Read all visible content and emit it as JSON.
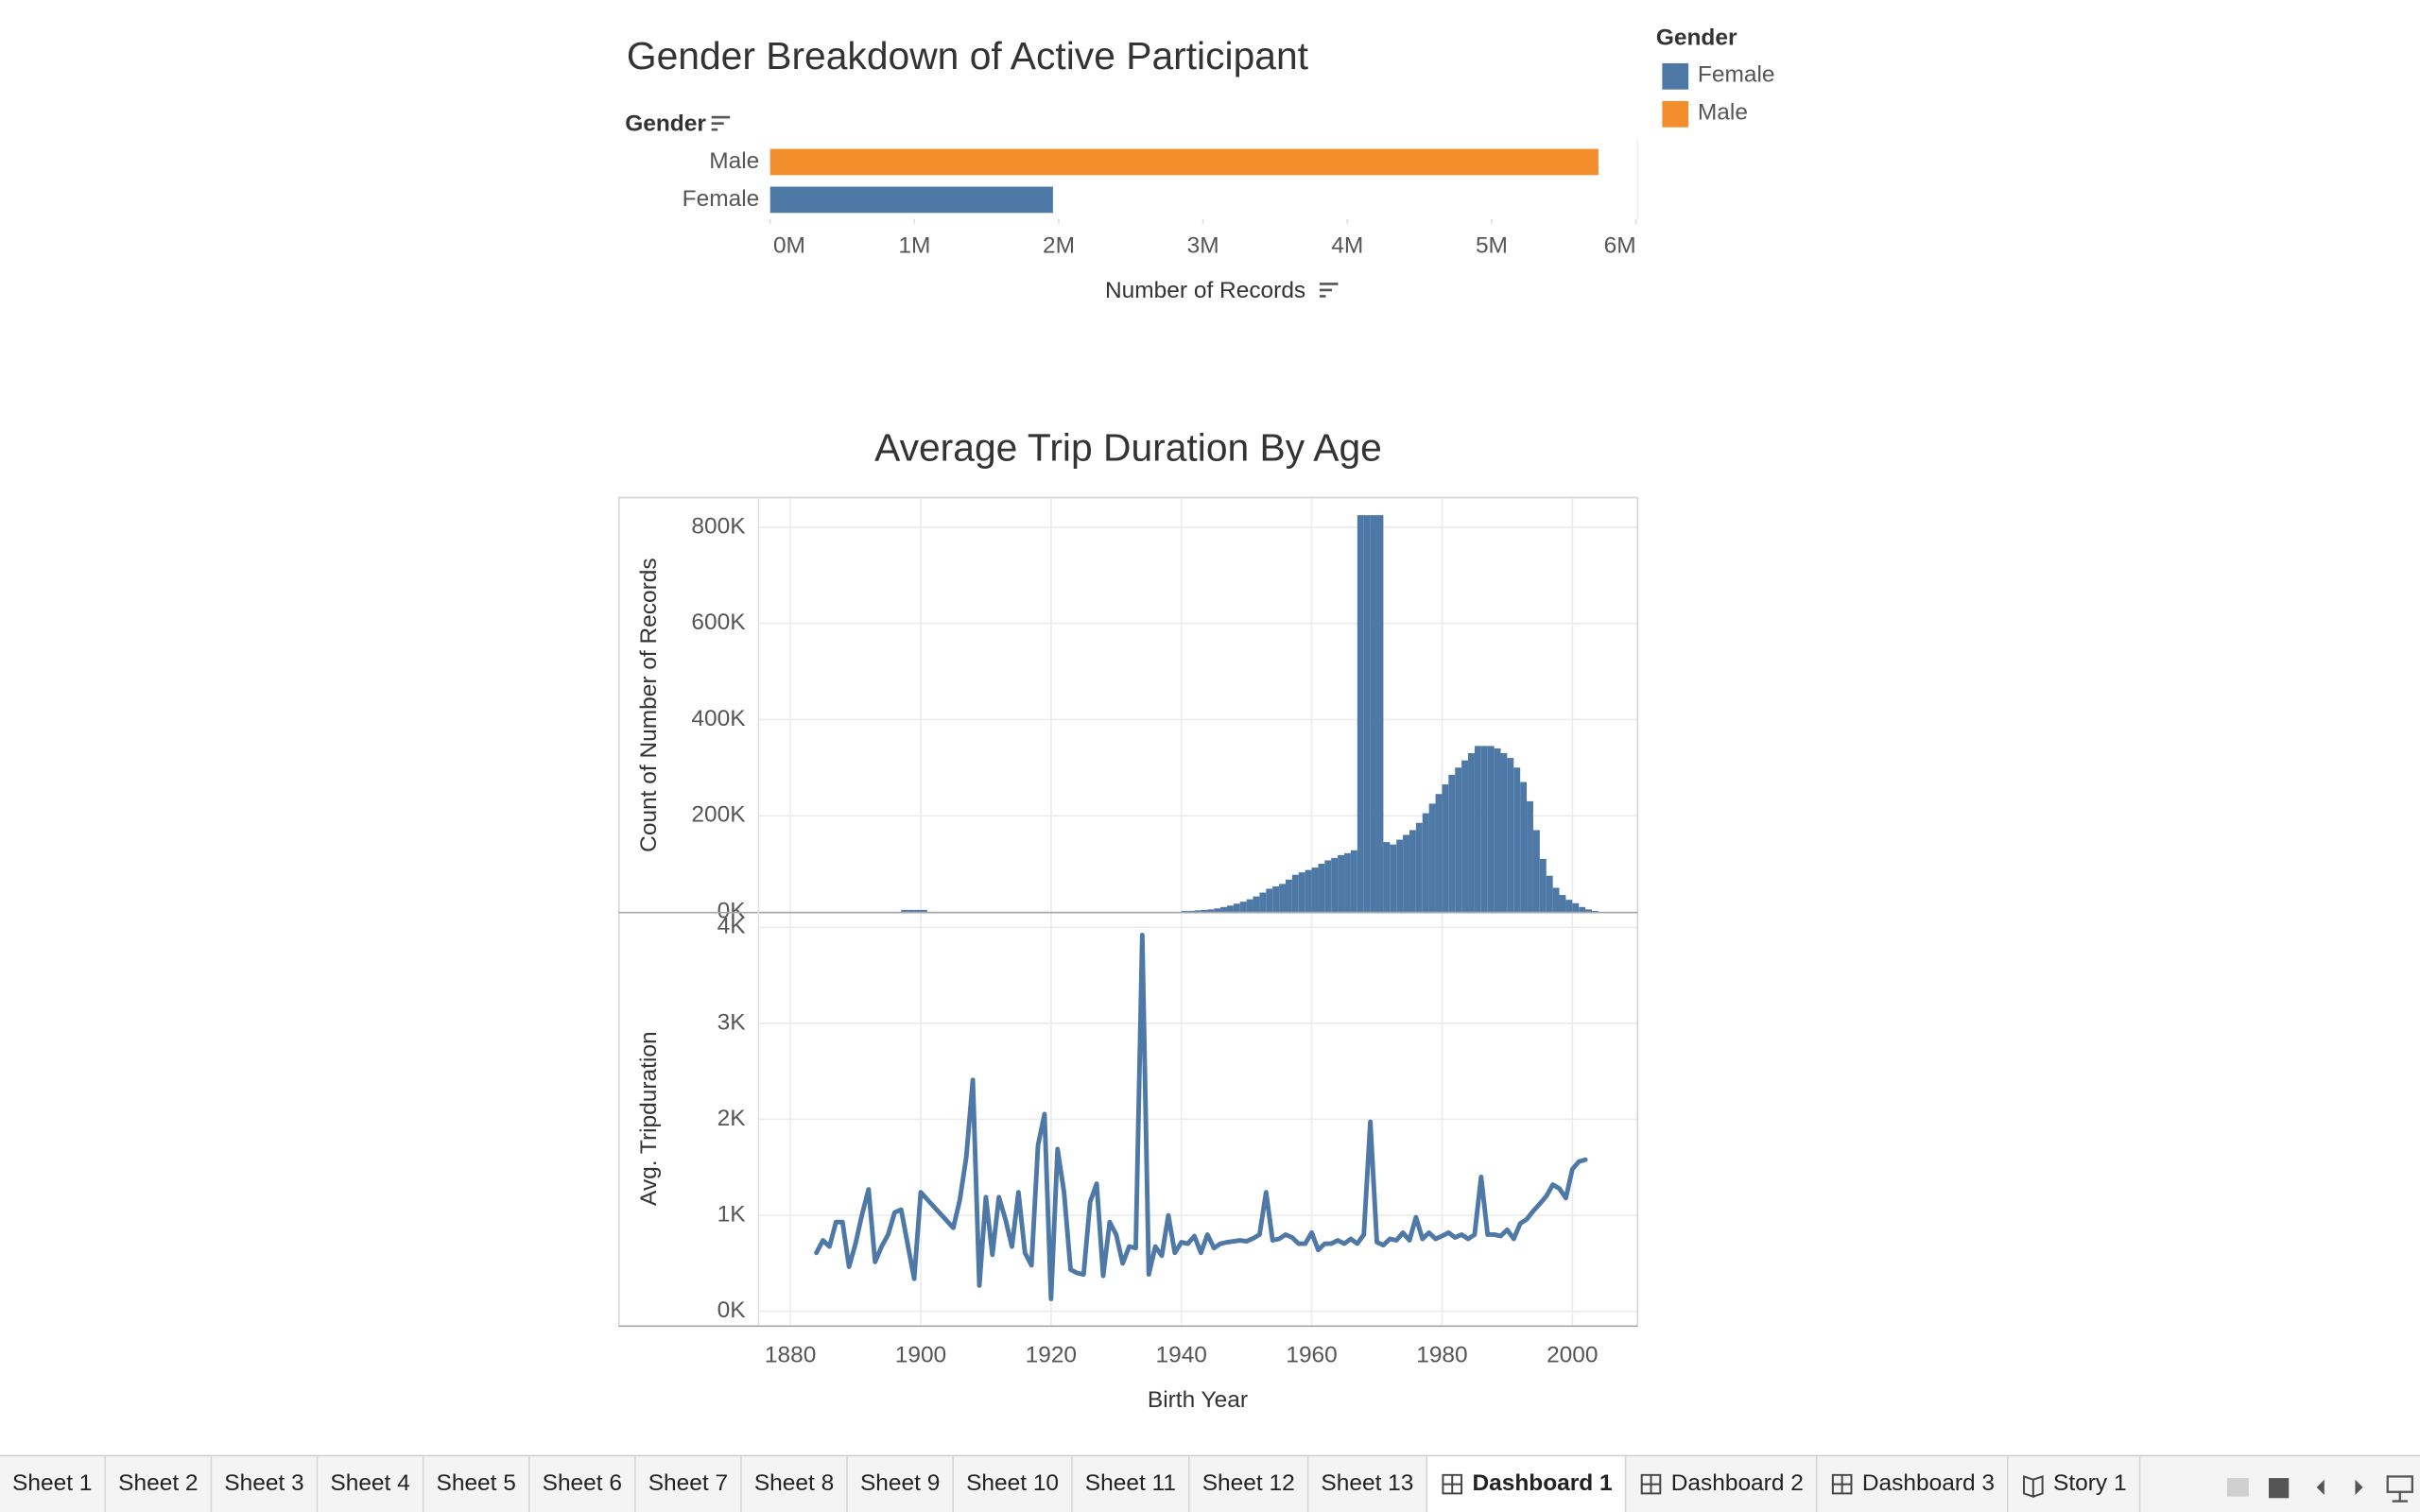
{
  "chart_data": [
    {
      "type": "bar",
      "orientation": "horizontal",
      "title": "Gender Breakdown of Active Participant",
      "y_label": "Gender",
      "x_label": "Number of Records",
      "categories": [
        "Male",
        "Female"
      ],
      "values": [
        5740000,
        1960000
      ],
      "colors": [
        "#f28e2b",
        "#4e79a7"
      ],
      "xlim": [
        0,
        6000000
      ],
      "xticks": [
        {
          "value": 0,
          "label": "0M"
        },
        {
          "value": 1000000,
          "label": "1M"
        },
        {
          "value": 2000000,
          "label": "2M"
        },
        {
          "value": 3000000,
          "label": "3M"
        },
        {
          "value": 4000000,
          "label": "4M"
        },
        {
          "value": 5000000,
          "label": "5M"
        },
        {
          "value": 6000000,
          "label": "6M"
        }
      ],
      "legend": {
        "title": "Gender",
        "corner": "top-right",
        "items": [
          {
            "name": "Female",
            "color": "#4e79a7"
          },
          {
            "name": "Male",
            "color": "#f28e2b"
          }
        ]
      }
    },
    {
      "type": "histogram",
      "title": "Average Trip Duration By Age",
      "y_label": "Count of Number of Records",
      "color": "#4e79a7",
      "bins": [
        1895,
        1896,
        1897,
        1898,
        1899,
        1900,
        1901,
        1902,
        1903,
        1904,
        1905,
        1906,
        1907,
        1908,
        1909,
        1910,
        1911,
        1912,
        1913,
        1914,
        1915,
        1916,
        1917,
        1918,
        1919,
        1920,
        1921,
        1922,
        1923,
        1924,
        1925,
        1926,
        1927,
        1928,
        1929,
        1930,
        1931,
        1932,
        1933,
        1934,
        1935,
        1936,
        1937,
        1938,
        1939,
        1940,
        1941,
        1942,
        1943,
        1944,
        1945,
        1946,
        1947,
        1948,
        1949,
        1950,
        1951,
        1952,
        1953,
        1954,
        1955,
        1956,
        1957,
        1958,
        1959,
        1960,
        1961,
        1962,
        1963,
        1964,
        1965,
        1966,
        1967,
        1968,
        1969,
        1970,
        1971,
        1972,
        1973,
        1974,
        1975,
        1976,
        1977,
        1978,
        1979,
        1980,
        1981,
        1982,
        1983,
        1984,
        1985,
        1986,
        1987,
        1988,
        1989,
        1990,
        1991,
        1992,
        1993,
        1994,
        1995,
        1996,
        1997,
        1998,
        1999,
        2000,
        2001,
        2002,
        2003,
        2004
      ],
      "values": [
        0,
        0,
        4000,
        4000,
        4000,
        4000,
        0,
        0,
        0,
        0,
        0,
        0,
        0,
        0,
        0,
        0,
        0,
        0,
        0,
        0,
        0,
        0,
        0,
        0,
        0,
        0,
        0,
        0,
        0,
        0,
        0,
        0,
        0,
        0,
        0,
        0,
        0,
        0,
        0,
        0,
        0,
        0,
        0,
        0,
        0,
        2000,
        2000,
        3000,
        4000,
        5000,
        7000,
        10000,
        13000,
        17000,
        21000,
        26000,
        32000,
        40000,
        48000,
        53000,
        58000,
        67000,
        77000,
        82000,
        87000,
        92000,
        100000,
        107000,
        112000,
        118000,
        122000,
        128000,
        825000,
        825000,
        825000,
        825000,
        145000,
        140000,
        150000,
        160000,
        170000,
        185000,
        205000,
        225000,
        245000,
        265000,
        285000,
        300000,
        315000,
        330000,
        345000,
        345000,
        345000,
        340000,
        330000,
        320000,
        300000,
        270000,
        230000,
        170000,
        110000,
        75000,
        50000,
        35000,
        25000,
        18000,
        10000,
        5000,
        2000
      ],
      "xlim": [
        1875,
        2010
      ],
      "xticks": [
        1880,
        1900,
        1920,
        1940,
        1960,
        1980,
        2000
      ],
      "ylim": [
        0,
        860000
      ],
      "yticks": [
        {
          "value": 0,
          "label": "0K"
        },
        {
          "value": 200000,
          "label": "200K"
        },
        {
          "value": 400000,
          "label": "400K"
        },
        {
          "value": 600000,
          "label": "600K"
        },
        {
          "value": 800000,
          "label": "800K"
        }
      ],
      "grid": true
    },
    {
      "type": "line",
      "x_label": "Birth Year",
      "y_label": "Avg. Tripduration",
      "color": "#4e79a7",
      "x": [
        1884,
        1885,
        1886,
        1887,
        1888,
        1889,
        1890,
        1891,
        1892,
        1893,
        1894,
        1895,
        1896,
        1897,
        1899,
        1900,
        1905,
        1906,
        1907,
        1908,
        1909,
        1910,
        1911,
        1912,
        1913,
        1914,
        1915,
        1916,
        1917,
        1918,
        1919,
        1920,
        1921,
        1922,
        1923,
        1924,
        1925,
        1926,
        1927,
        1928,
        1929,
        1930,
        1931,
        1932,
        1933,
        1934,
        1935,
        1936,
        1937,
        1938,
        1939,
        1940,
        1941,
        1942,
        1943,
        1944,
        1945,
        1946,
        1947,
        1948,
        1949,
        1950,
        1951,
        1952,
        1953,
        1954,
        1955,
        1956,
        1957,
        1958,
        1959,
        1960,
        1961,
        1962,
        1963,
        1964,
        1965,
        1966,
        1967,
        1968,
        1969,
        1970,
        1971,
        1972,
        1973,
        1974,
        1975,
        1976,
        1977,
        1978,
        1979,
        1980,
        1981,
        1982,
        1983,
        1984,
        1985,
        1986,
        1987,
        1988,
        1989,
        1990,
        1991,
        1992,
        1993,
        1994,
        1995,
        1996,
        1997,
        1998,
        1999,
        2000,
        2001,
        2002
      ],
      "values": [
        610,
        740,
        675,
        930,
        930,
        465,
        705,
        1010,
        1270,
        515,
        675,
        800,
        1030,
        1060,
        340,
        1240,
        870,
        1160,
        1610,
        2410,
        270,
        1190,
        590,
        1190,
        960,
        675,
        1240,
        610,
        480,
        1730,
        2055,
        130,
        1690,
        1240,
        435,
        400,
        385,
        1140,
        1330,
        370,
        930,
        800,
        500,
        675,
        660,
        3920,
        385,
        675,
        580,
        1000,
        610,
        720,
        705,
        785,
        610,
        800,
        660,
        705,
        720,
        730,
        740,
        730,
        760,
        800,
        1240,
        740,
        755,
        800,
        770,
        705,
        705,
        820,
        640,
        705,
        705,
        740,
        705,
        755,
        705,
        800,
        1975,
        720,
        690,
        755,
        740,
        820,
        740,
        980,
        755,
        820,
        755,
        785,
        820,
        770,
        800,
        755,
        800,
        1400,
        800,
        800,
        785,
        850,
        755,
        915,
        960,
        1045,
        1120,
        1200,
        1320,
        1280,
        1180,
        1480,
        1560,
        1580
      ],
      "xlim": [
        1875,
        2010
      ],
      "xticks": [
        1880,
        1900,
        1920,
        1940,
        1960,
        1980,
        2000
      ],
      "ylim": [
        -145,
        4145
      ],
      "yticks": [
        {
          "value": 0,
          "label": "0K"
        },
        {
          "value": 1000,
          "label": "1K"
        },
        {
          "value": 2000,
          "label": "2K"
        },
        {
          "value": 3000,
          "label": "3K"
        },
        {
          "value": 4000,
          "label": "4K"
        }
      ],
      "grid": true
    }
  ],
  "tabs": [
    {
      "label": "Sheet 1",
      "kind": "sheet"
    },
    {
      "label": "Sheet 2",
      "kind": "sheet"
    },
    {
      "label": "Sheet 3",
      "kind": "sheet"
    },
    {
      "label": "Sheet 4",
      "kind": "sheet"
    },
    {
      "label": "Sheet 5",
      "kind": "sheet"
    },
    {
      "label": "Sheet 6",
      "kind": "sheet"
    },
    {
      "label": "Sheet 7",
      "kind": "sheet"
    },
    {
      "label": "Sheet 8",
      "kind": "sheet"
    },
    {
      "label": "Sheet 9",
      "kind": "sheet"
    },
    {
      "label": "Sheet 10",
      "kind": "sheet"
    },
    {
      "label": "Sheet 11",
      "kind": "sheet"
    },
    {
      "label": "Sheet 12",
      "kind": "sheet"
    },
    {
      "label": "Sheet 13",
      "kind": "sheet"
    },
    {
      "label": "Dashboard 1",
      "kind": "dashboard"
    },
    {
      "label": "Dashboard 2",
      "kind": "dashboard"
    },
    {
      "label": "Dashboard 3",
      "kind": "dashboard"
    },
    {
      "label": "Story 1",
      "kind": "story"
    }
  ],
  "active_tab": 13
}
